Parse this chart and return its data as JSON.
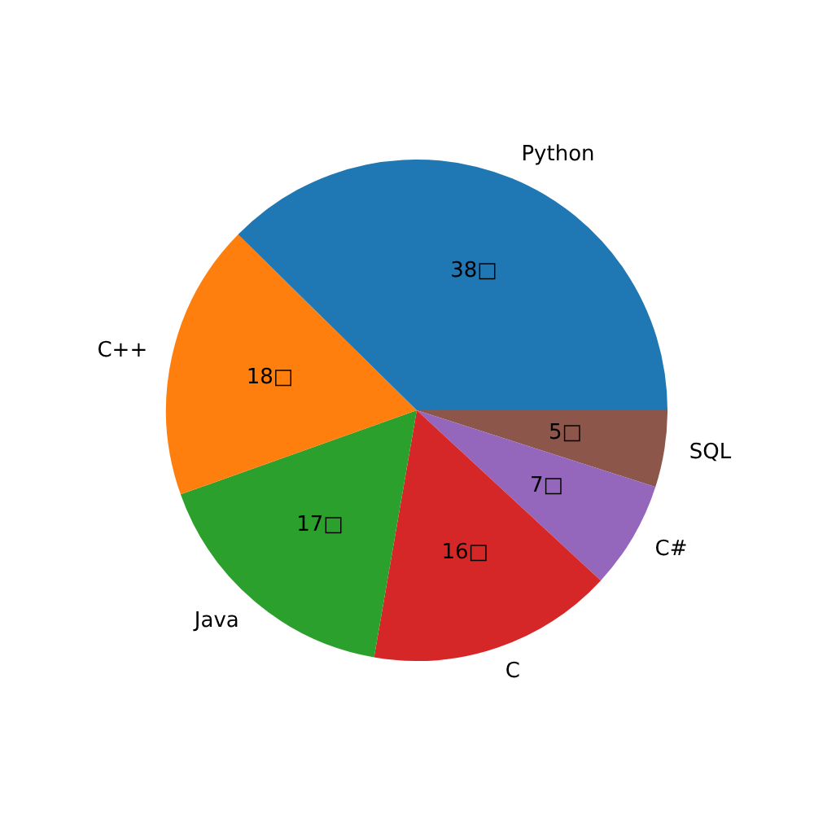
{
  "chart_data": {
    "type": "pie",
    "categories": [
      "Python",
      "C++",
      "Java",
      "C",
      "C#",
      "SQL"
    ],
    "values": [
      38,
      18,
      17,
      16,
      7,
      5
    ],
    "colors": [
      "#1f77b4",
      "#ff7f0e",
      "#2ca02c",
      "#d62728",
      "#9467bd",
      "#8c564b"
    ],
    "value_labels": [
      "38□",
      "18□",
      "17□",
      "16□",
      "7□",
      "5□"
    ],
    "legend": false
  }
}
